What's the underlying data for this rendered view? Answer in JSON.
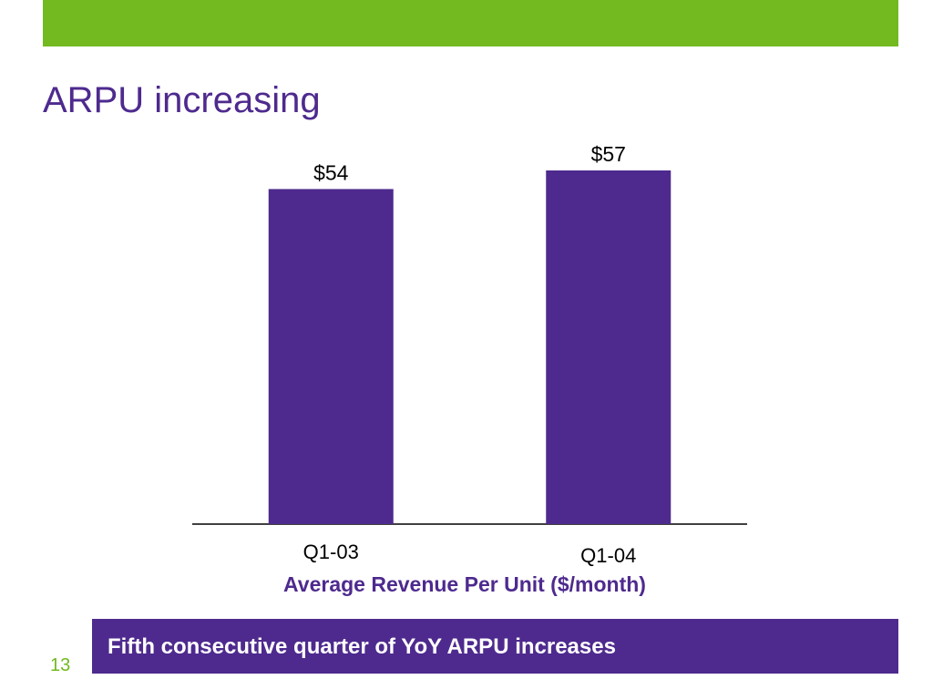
{
  "slide": {
    "title": "ARPU increasing",
    "banner_text": "Fifth consecutive quarter of YoY ARPU increases",
    "page_number": "13"
  },
  "colors": {
    "accent_green": "#73b920",
    "brand_purple": "#4e2a8e",
    "axis": "#000000"
  },
  "chart_data": {
    "type": "bar",
    "title": "",
    "categories": [
      "Q1-03",
      "Q1-04"
    ],
    "values": [
      54,
      57
    ],
    "data_labels": [
      "$54",
      "$57"
    ],
    "xlabel": "Average Revenue Per Unit ($/month)",
    "ylabel": "",
    "ylim": [
      0,
      57
    ],
    "grid": false,
    "legend": "none"
  }
}
